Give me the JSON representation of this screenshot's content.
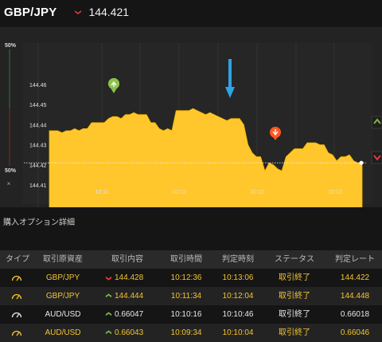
{
  "header": {
    "pair": "GBP/JPY",
    "direction": "down",
    "price": "144.421"
  },
  "sentiment": {
    "top_label": "50%",
    "bottom_label": "50%",
    "close": "×"
  },
  "chart_data": {
    "type": "area",
    "ylim": [
      144.4,
      144.47
    ],
    "yticks": [
      "144.46",
      "144.45",
      "144.44",
      "144.43",
      "144.42",
      "144.41"
    ],
    "xticks": [
      "10:11",
      "10:12",
      "10:12",
      "10:13"
    ],
    "current_value": 144.421,
    "colors": {
      "fill": "#ffc72c",
      "up_marker": "#8bc34a",
      "down_marker": "#ff5722",
      "arrow": "#2ea3e6"
    },
    "series": [
      {
        "values": [
          144.437,
          144.437,
          144.437,
          144.436,
          144.437,
          144.437,
          144.438,
          144.437,
          144.438,
          144.438,
          144.441,
          144.441,
          144.441,
          144.441,
          144.443,
          144.444,
          144.444,
          144.443,
          144.445,
          144.445,
          144.446,
          144.445,
          144.445,
          144.445,
          144.441,
          144.441,
          144.438,
          144.437,
          144.438,
          144.437,
          144.447,
          144.447,
          144.447,
          144.447,
          144.448,
          144.447,
          144.446,
          144.445,
          144.446,
          144.445,
          144.444,
          144.443,
          144.442,
          144.443,
          144.443,
          144.443,
          144.44,
          144.43,
          144.426,
          144.424,
          144.424,
          144.417,
          144.421,
          144.42,
          144.418,
          144.417,
          144.424,
          144.426,
          144.428,
          144.428,
          144.428,
          144.431,
          144.431,
          144.431,
          144.43,
          144.43,
          144.426,
          144.425,
          144.422,
          144.424,
          144.424,
          144.425,
          144.422,
          144.421,
          144.421
        ]
      }
    ]
  },
  "section_title": "購入オプション詳細",
  "table": {
    "headers": [
      "タイプ",
      "取引原資産",
      "取引内容",
      "取引時間",
      "判定時刻",
      "ステータス",
      "判定レート"
    ],
    "rows": [
      {
        "icon": "gauge-icon",
        "asset": "GBP/JPY",
        "dir": "down",
        "content": "144.428",
        "time": "10:12:36",
        "judge": "10:13:06",
        "status": "取引終了",
        "rate": "144.422",
        "color": "#f4c430"
      },
      {
        "icon": "gauge-icon",
        "asset": "GBP/JPY",
        "dir": "up",
        "content": "144.444",
        "time": "10:11:34",
        "judge": "10:12:04",
        "status": "取引終了",
        "rate": "144.448",
        "color": "#f4c430"
      },
      {
        "icon": "gauge-icon",
        "asset": "AUD/USD",
        "dir": "up",
        "content": "0.66047",
        "time": "10:10:16",
        "judge": "10:10:46",
        "status": "取引終了",
        "rate": "0.66018",
        "color": "#e8e8e8"
      },
      {
        "icon": "gauge-icon",
        "asset": "AUD/USD",
        "dir": "up",
        "content": "0.66043",
        "time": "10:09:34",
        "judge": "10:10:04",
        "status": "取引終了",
        "rate": "0.66046",
        "color": "#f4c430"
      }
    ]
  }
}
